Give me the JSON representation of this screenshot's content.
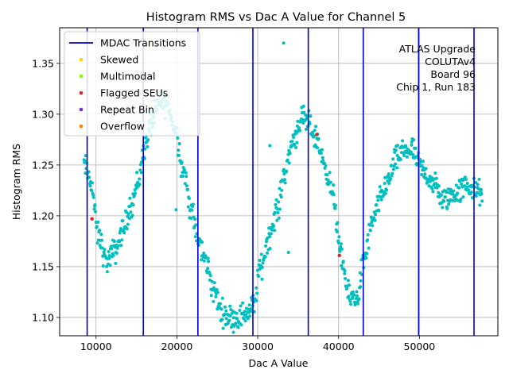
{
  "chart_data": {
    "type": "scatter",
    "title": "Histogram RMS vs Dac A Value for Channel 5",
    "xlabel": "Dac A Value",
    "ylabel": "Histogram RMS",
    "xlim": [
      5500,
      59700
    ],
    "ylim": [
      1.082,
      1.385
    ],
    "xticks": [
      10000,
      20000,
      30000,
      40000,
      50000
    ],
    "yticks": [
      1.1,
      1.15,
      1.2,
      1.25,
      1.3,
      1.35
    ],
    "xtick_labels": [
      "10000",
      "20000",
      "30000",
      "40000",
      "50000"
    ],
    "ytick_labels": [
      "1.10",
      "1.15",
      "1.20",
      "1.25",
      "1.30",
      "1.35"
    ],
    "grid": true,
    "legend_position": "top-left",
    "legend": [
      {
        "label": "MDAC Transitions",
        "marker": "line",
        "color": "#0000cc"
      },
      {
        "label": "Skewed",
        "marker": "dot",
        "color": "#ffd700"
      },
      {
        "label": "Multimodal",
        "marker": "dot",
        "color": "#7fff00"
      },
      {
        "label": "Flagged SEUs",
        "marker": "dot",
        "color": "#d62728"
      },
      {
        "label": "Repeat Bin",
        "marker": "dot",
        "color": "#7b2fbe"
      },
      {
        "label": "Overflow",
        "marker": "dot",
        "color": "#ff7f0e"
      }
    ],
    "annotation_lines": [
      "ATLAS Upgrade",
      "COLUTAv4",
      "Board 96",
      "Chip 1, Run 183"
    ],
    "mdac_transitions": [
      8900,
      15850,
      22600,
      29400,
      36250,
      43050,
      49900,
      56750
    ],
    "mdac_color": "#0000cc",
    "point_color": "#00bfbf",
    "curve": {
      "description": "main trend (x, y) knots of the RMS data",
      "x": [
        8500,
        9300,
        10300,
        11300,
        12300,
        13300,
        14300,
        15300,
        15900,
        16800,
        17800,
        18800,
        19800,
        20800,
        21800,
        22600,
        23600,
        24600,
        25600,
        26600,
        27600,
        28600,
        29400,
        30400,
        31400,
        32400,
        33400,
        34400,
        35400,
        36300,
        37300,
        38300,
        39300,
        40300,
        41300,
        42300,
        43100,
        44100,
        45100,
        46100,
        47100,
        48100,
        49100,
        49900,
        50900,
        51900,
        52900,
        53900,
        54900,
        55900,
        56800,
        57800
      ],
      "y": [
        1.25,
        1.235,
        1.18,
        1.155,
        1.165,
        1.185,
        1.21,
        1.235,
        1.265,
        1.29,
        1.31,
        1.31,
        1.285,
        1.245,
        1.205,
        1.175,
        1.155,
        1.125,
        1.105,
        1.1,
        1.1,
        1.105,
        1.11,
        1.15,
        1.18,
        1.205,
        1.245,
        1.275,
        1.295,
        1.29,
        1.275,
        1.25,
        1.22,
        1.16,
        1.12,
        1.12,
        1.155,
        1.19,
        1.215,
        1.235,
        1.255,
        1.265,
        1.265,
        1.25,
        1.24,
        1.23,
        1.215,
        1.22,
        1.225,
        1.23,
        1.225,
        1.222
      ]
    },
    "flagged_points": [
      {
        "category": "Flagged SEUs",
        "x": 9500,
        "y": 1.197
      },
      {
        "category": "Flagged SEUs",
        "x": 37300,
        "y": 1.28
      },
      {
        "category": "Flagged SEUs",
        "x": 40100,
        "y": 1.161
      }
    ],
    "outlier_points": [
      {
        "x": 33200,
        "y": 1.37
      },
      {
        "x": 33800,
        "y": 1.164
      },
      {
        "x": 19900,
        "y": 1.206
      },
      {
        "x": 31500,
        "y": 1.269
      }
    ]
  }
}
